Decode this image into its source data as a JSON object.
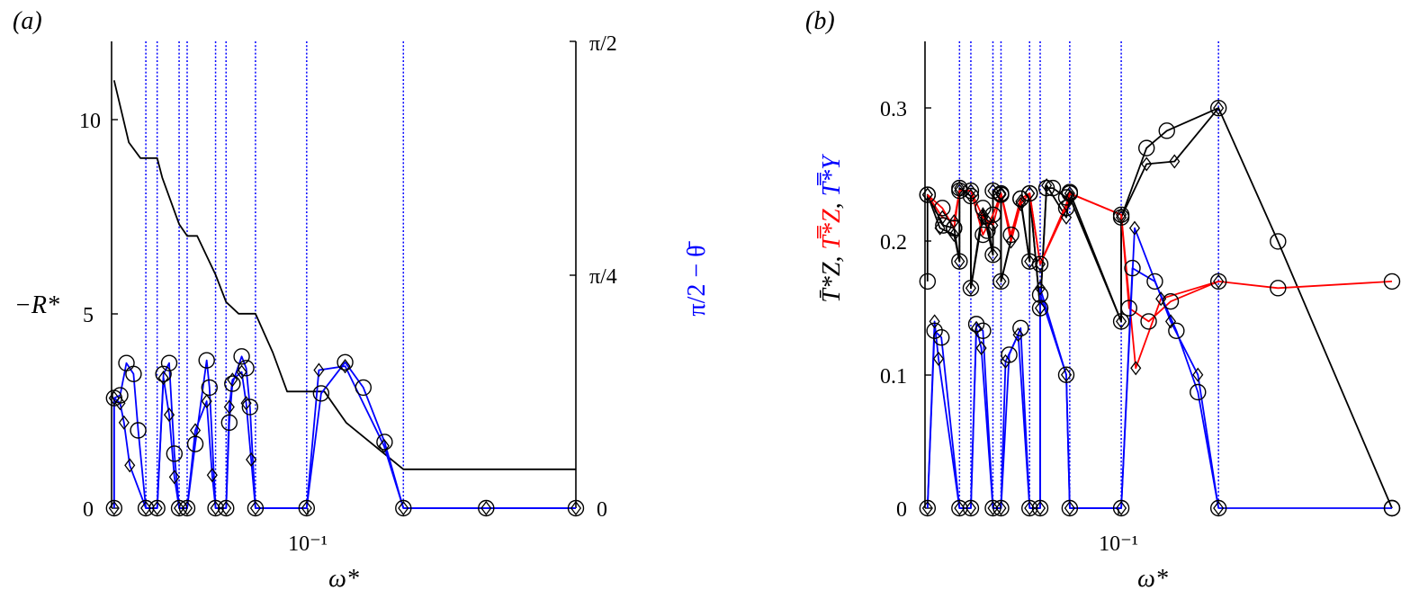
{
  "colors": {
    "black": "#000000",
    "blue": "#0000ff",
    "red": "#ff0000",
    "grid": "#0000ff"
  },
  "panels": [
    {
      "label": "(a)",
      "ylabel_left": "−R*",
      "ylabel_right": "π/2 − θ̄",
      "xlabel": "ω*",
      "x_tick_label": "10⁻¹",
      "y_ticks_left": [
        "0",
        "5",
        "10"
      ],
      "y_ticks_right": [
        "0",
        "π/4",
        "π/2"
      ]
    },
    {
      "label": "(b)",
      "xlabel": "ω*",
      "x_tick_label": "10⁻¹",
      "y_ticks": [
        "0",
        "0.1",
        "0.2",
        "0.3"
      ],
      "ylabel_parts": [
        {
          "text": "T̄*Z",
          "color": "#000000"
        },
        {
          "text": ", ",
          "color": "#000000"
        },
        {
          "text": "T̿*Z",
          "color": "#ff0000"
        },
        {
          "text": ", ",
          "color": "#000000"
        },
        {
          "text": "T̿*Y",
          "color": "#0000ff"
        }
      ]
    }
  ],
  "chart_data": [
    {
      "type": "line",
      "panel": "a",
      "x_scale": "log",
      "xlim": [
        0.0485,
        0.316
      ],
      "ylim_left": [
        0,
        12
      ],
      "ylim_right": [
        0,
        1.8
      ],
      "vertical_lines_x": [
        0.0557,
        0.0583,
        0.0637,
        0.0658,
        0.0738,
        0.077,
        0.0867,
        0.1066,
        0.1575
      ],
      "series": [
        {
          "color": "#000000",
          "axis": "left",
          "marker": "none",
          "points": [
            [
              0.049,
              11.0
            ],
            [
              0.052,
              9.4
            ],
            [
              0.0545,
              9.0
            ],
            [
              0.0583,
              9.0
            ],
            [
              0.0595,
              8.5
            ],
            [
              0.0637,
              7.3
            ],
            [
              0.0658,
              7.0
            ],
            [
              0.0685,
              7.0
            ],
            [
              0.0738,
              6.0
            ],
            [
              0.077,
              5.3
            ],
            [
              0.081,
              5.0
            ],
            [
              0.0867,
              5.0
            ],
            [
              0.093,
              4.0
            ],
            [
              0.0985,
              3.0
            ],
            [
              0.1066,
              3.0
            ],
            [
              0.1145,
              3.0
            ],
            [
              0.125,
              2.2
            ],
            [
              0.1575,
              1.0
            ],
            [
              0.316,
              1.0
            ]
          ]
        },
        {
          "color": "#0000ff",
          "axis": "left",
          "marker": "circle",
          "points": [
            [
              0.049,
              0
            ],
            [
              0.049,
              2.83
            ],
            [
              0.0502,
              2.9
            ],
            [
              0.0515,
              3.73
            ],
            [
              0.053,
              3.45
            ],
            [
              0.054,
              2.0
            ],
            [
              0.0557,
              0
            ],
            [
              0.0583,
              0
            ],
            [
              0.0598,
              3.45
            ],
            [
              0.0612,
              3.73
            ],
            [
              0.0625,
              1.4
            ],
            [
              0.0637,
              0
            ],
            [
              0.0658,
              0
            ],
            [
              0.068,
              1.65
            ],
            [
              0.0712,
              3.8
            ],
            [
              0.072,
              3.1
            ],
            [
              0.0738,
              0
            ],
            [
              0.077,
              0
            ],
            [
              0.078,
              2.2
            ],
            [
              0.079,
              3.2
            ],
            [
              0.082,
              3.9
            ],
            [
              0.0835,
              3.6
            ],
            [
              0.0848,
              2.6
            ],
            [
              0.0867,
              0
            ],
            [
              0.1066,
              0
            ],
            [
              0.113,
              2.95
            ],
            [
              0.1245,
              3.75
            ],
            [
              0.134,
              3.1
            ],
            [
              0.146,
              1.7
            ],
            [
              0.1575,
              0
            ],
            [
              0.22,
              0
            ],
            [
              0.316,
              0
            ]
          ]
        },
        {
          "color": "#0000ff",
          "axis": "left",
          "marker": "diamond",
          "points": [
            [
              0.049,
              0
            ],
            [
              0.049,
              2.83
            ],
            [
              0.0502,
              2.7
            ],
            [
              0.051,
              2.2
            ],
            [
              0.0522,
              1.1
            ],
            [
              0.0557,
              0
            ],
            [
              0.0583,
              0
            ],
            [
              0.0598,
              3.35
            ],
            [
              0.0612,
              2.4
            ],
            [
              0.0625,
              0.8
            ],
            [
              0.0637,
              0
            ],
            [
              0.0658,
              0
            ],
            [
              0.068,
              2.0
            ],
            [
              0.0712,
              2.75
            ],
            [
              0.0728,
              0.85
            ],
            [
              0.0738,
              0
            ],
            [
              0.077,
              0
            ],
            [
              0.078,
              2.6
            ],
            [
              0.079,
              3.3
            ],
            [
              0.082,
              3.5
            ],
            [
              0.0835,
              2.7
            ],
            [
              0.0852,
              1.25
            ],
            [
              0.0867,
              0
            ],
            [
              0.1066,
              0
            ],
            [
              0.112,
              3.55
            ],
            [
              0.1245,
              3.65
            ],
            [
              0.1457,
              1.6
            ],
            [
              0.1575,
              0
            ],
            [
              0.22,
              0
            ],
            [
              0.316,
              0
            ]
          ]
        }
      ]
    },
    {
      "type": "line",
      "panel": "b",
      "x_scale": "log",
      "xlim": [
        0.0485,
        0.316
      ],
      "ylim": [
        0,
        0.35
      ],
      "vertical_lines_x": [
        0.0557,
        0.0583,
        0.0637,
        0.0658,
        0.0738,
        0.077,
        0.0867,
        0.1066,
        0.1575
      ],
      "series": [
        {
          "color": "#000000",
          "marker": "circle",
          "points": [
            [
              0.049,
              0.17
            ],
            [
              0.049,
              0.235
            ],
            [
              0.0522,
              0.212
            ],
            [
              0.0545,
              0.21
            ],
            [
              0.0557,
              0.185
            ],
            [
              0.0557,
              0.24
            ],
            [
              0.0583,
              0.234
            ],
            [
              0.0583,
              0.165
            ],
            [
              0.0612,
              0.225
            ],
            [
              0.0623,
              0.208
            ],
            [
              0.0637,
              0.19
            ],
            [
              0.0637,
              0.238
            ],
            [
              0.0658,
              0.235
            ],
            [
              0.0658,
              0.17
            ],
            [
              0.0712,
              0.232
            ],
            [
              0.0738,
              0.185
            ],
            [
              0.0738,
              0.236
            ],
            [
              0.077,
              0.15
            ],
            [
              0.079,
              0.24
            ],
            [
              0.081,
              0.24
            ],
            [
              0.0855,
              0.233
            ],
            [
              0.0867,
              0.237
            ],
            [
              0.1066,
              0.14
            ],
            [
              0.1066,
              0.218
            ],
            [
              0.118,
              0.27
            ],
            [
              0.128,
              0.283
            ],
            [
              0.1575,
              0.3
            ],
            [
              0.2,
              0.2
            ],
            [
              0.316,
              0.0
            ]
          ]
        },
        {
          "color": "#000000",
          "marker": "diamond",
          "points": [
            [
              0.049,
              0.235
            ],
            [
              0.0515,
              0.21
            ],
            [
              0.0545,
              0.205
            ],
            [
              0.0557,
              0.185
            ],
            [
              0.0557,
              0.24
            ],
            [
              0.0583,
              0.234
            ],
            [
              0.0583,
              0.165
            ],
            [
              0.0612,
              0.22
            ],
            [
              0.0623,
              0.215
            ],
            [
              0.0637,
              0.19
            ],
            [
              0.0637,
              0.238
            ],
            [
              0.0658,
              0.235
            ],
            [
              0.0658,
              0.17
            ],
            [
              0.0712,
              0.23
            ],
            [
              0.0738,
              0.185
            ],
            [
              0.0738,
              0.236
            ],
            [
              0.077,
              0.15
            ],
            [
              0.079,
              0.242
            ],
            [
              0.0855,
              0.218
            ],
            [
              0.0867,
              0.233
            ],
            [
              0.1066,
              0.14
            ],
            [
              0.1066,
              0.218
            ],
            [
              0.118,
              0.258
            ],
            [
              0.132,
              0.26
            ],
            [
              0.1575,
              0.3
            ]
          ]
        },
        {
          "color": "#ff0000",
          "marker": "circle",
          "points": [
            [
              0.049,
              0.235
            ],
            [
              0.052,
              0.225
            ],
            [
              0.0545,
              0.21
            ],
            [
              0.0557,
              0.238
            ],
            [
              0.0583,
              0.238
            ],
            [
              0.0612,
              0.205
            ],
            [
              0.0637,
              0.22
            ],
            [
              0.0658,
              0.236
            ],
            [
              0.0685,
              0.205
            ],
            [
              0.0712,
              0.232
            ],
            [
              0.0738,
              0.236
            ],
            [
              0.077,
              0.183
            ],
            [
              0.0855,
              0.225
            ],
            [
              0.0867,
              0.236
            ],
            [
              0.1066,
              0.22
            ],
            [
              0.11,
              0.15
            ],
            [
              0.119,
              0.14
            ],
            [
              0.13,
              0.155
            ],
            [
              0.1575,
              0.17
            ],
            [
              0.2,
              0.165
            ],
            [
              0.316,
              0.17
            ]
          ]
        },
        {
          "color": "#ff0000",
          "marker": "diamond",
          "points": [
            [
              0.049,
              0.235
            ],
            [
              0.052,
              0.218
            ],
            [
              0.0545,
              0.215
            ],
            [
              0.0557,
              0.238
            ],
            [
              0.0583,
              0.238
            ],
            [
              0.0612,
              0.218
            ],
            [
              0.0637,
              0.212
            ],
            [
              0.0658,
              0.236
            ],
            [
              0.0685,
              0.2
            ],
            [
              0.0712,
              0.228
            ],
            [
              0.0738,
              0.236
            ],
            [
              0.077,
              0.183
            ],
            [
              0.0855,
              0.228
            ],
            [
              0.0867,
              0.236
            ],
            [
              0.1066,
              0.22
            ],
            [
              0.113,
              0.105
            ],
            [
              0.125,
              0.157
            ],
            [
              0.1575,
              0.17
            ]
          ]
        },
        {
          "color": "#0000ff",
          "marker": "circle",
          "points": [
            [
              0.049,
              0.0
            ],
            [
              0.0504,
              0.133
            ],
            [
              0.0518,
              0.128
            ],
            [
              0.0557,
              0.0
            ],
            [
              0.0583,
              0.0
            ],
            [
              0.0596,
              0.138
            ],
            [
              0.0612,
              0.133
            ],
            [
              0.0637,
              0.0
            ],
            [
              0.0658,
              0.0
            ],
            [
              0.068,
              0.115
            ],
            [
              0.0712,
              0.135
            ],
            [
              0.0738,
              0.0
            ],
            [
              0.077,
              0.0
            ],
            [
              0.077,
              0.16
            ],
            [
              0.0855,
              0.1
            ],
            [
              0.0867,
              0.0
            ],
            [
              0.1066,
              0.0
            ],
            [
              0.1115,
              0.18
            ],
            [
              0.122,
              0.17
            ],
            [
              0.133,
              0.133
            ],
            [
              0.145,
              0.087
            ],
            [
              0.1575,
              0.0
            ],
            [
              0.316,
              0.0
            ]
          ]
        },
        {
          "color": "#0000ff",
          "marker": "diamond",
          "points": [
            [
              0.049,
              0.0
            ],
            [
              0.0504,
              0.14
            ],
            [
              0.0512,
              0.112
            ],
            [
              0.0557,
              0.0
            ],
            [
              0.0583,
              0.0
            ],
            [
              0.0596,
              0.135
            ],
            [
              0.0608,
              0.12
            ],
            [
              0.0637,
              0.0
            ],
            [
              0.0658,
              0.0
            ],
            [
              0.067,
              0.11
            ],
            [
              0.0705,
              0.13
            ],
            [
              0.0738,
              0.0
            ],
            [
              0.077,
              0.0
            ],
            [
              0.077,
              0.165
            ],
            [
              0.0855,
              0.1
            ],
            [
              0.0867,
              0.0
            ],
            [
              0.1066,
              0.0
            ],
            [
              0.1125,
              0.21
            ],
            [
              0.13,
              0.14
            ],
            [
              0.145,
              0.1
            ],
            [
              0.1575,
              0.0
            ]
          ]
        }
      ]
    }
  ]
}
